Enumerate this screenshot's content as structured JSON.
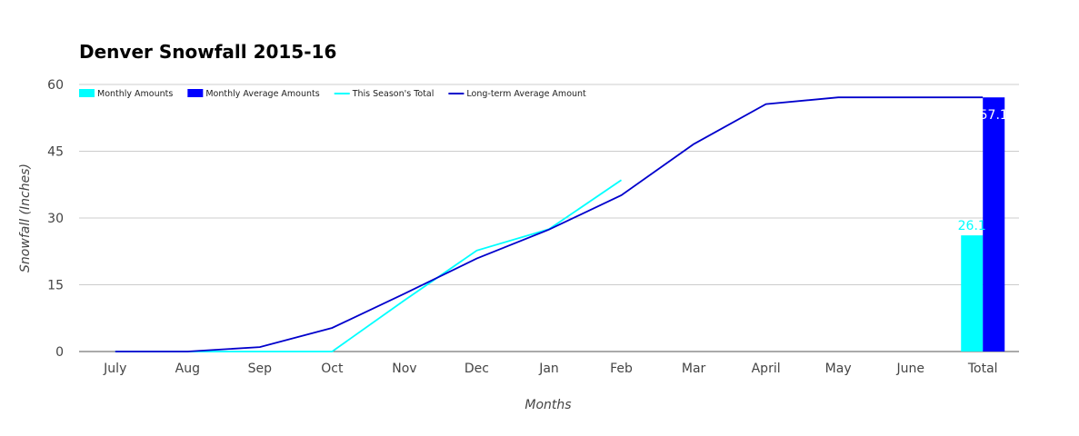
{
  "chart_data": {
    "type": "bar+line",
    "title": "Denver Snowfall 2015-16",
    "xlabel": "Months",
    "ylabel": "Snowfall (Inches)",
    "ylim": [
      0,
      60
    ],
    "yticks": [
      0,
      15,
      30,
      45,
      60
    ],
    "categories": [
      "July",
      "Aug",
      "Sep",
      "Oct",
      "Nov",
      "Dec",
      "Jan",
      "Feb",
      "Mar",
      "April",
      "May",
      "June",
      "Total"
    ],
    "grid": true,
    "legend_position": "top-left",
    "series": [
      {
        "name": "Monthly Amounts",
        "type": "bar",
        "color": "#00ffff",
        "values": [
          0,
          0,
          0,
          0,
          0,
          0,
          0,
          0,
          0,
          0,
          0,
          0,
          26.1
        ]
      },
      {
        "name": "Monthly Average Amounts",
        "type": "bar",
        "color": "#0000ff",
        "values": [
          0,
          0,
          0,
          0,
          0,
          0,
          0,
          0,
          0,
          0,
          0,
          0,
          57.1
        ]
      },
      {
        "name": "This Season's Total",
        "type": "line",
        "color": "#00ffff",
        "values": [
          0,
          0,
          0,
          0,
          11.5,
          22.7,
          27.5,
          38.5,
          null,
          null,
          null,
          null,
          26.1
        ]
      },
      {
        "name": "Long-term Average Amount",
        "type": "line",
        "color": "#0000cc",
        "values": [
          0,
          0,
          1.0,
          5.3,
          13,
          20.9,
          27.4,
          35.1,
          46.6,
          55.6,
          57.1,
          57.1,
          57.1
        ]
      }
    ],
    "data_labels": [
      {
        "series": "Monthly Amounts",
        "category": "Total",
        "text": "26.1",
        "color": "#00ffff"
      },
      {
        "series": "Monthly Average Amounts",
        "category": "Total",
        "text": "57.1",
        "color": "#ffffff"
      }
    ]
  }
}
